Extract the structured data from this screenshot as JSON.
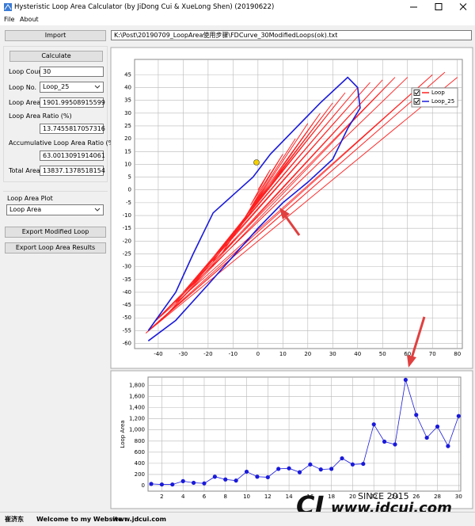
{
  "window": {
    "title": "Hysteristic Loop Area Calculator (by JiDong Cui & XueLong Shen) (20190622)"
  },
  "menu": [
    "File",
    "About"
  ],
  "left_panel": {
    "import_button": "Import",
    "calculate_button": "Calculate",
    "fields": [
      {
        "label": "Loop Count",
        "value": "30"
      },
      {
        "label": "Loop No.",
        "value": "Loop_25"
      },
      {
        "label": "Loop Area",
        "value": "1901.99508915599"
      },
      {
        "label": "Loop Area Ratio (%)",
        "value": "13.7455817057316"
      },
      {
        "label": "Accumulative Loop Area Ratio (%)",
        "value": "63.0013091914061"
      },
      {
        "label": "Total Area",
        "value": "13837.1378518154"
      }
    ],
    "plot_label": "Loop Area Plot",
    "plot_select": "Loop Area",
    "export_modified_button": "Export Modified Loop",
    "export_results_button": "Export Loop Area Results"
  },
  "file_path": "K:\\Post\\20190709_LoopArea使用步骤\\FDCurve_30ModifiedLoops(ok).txt",
  "chart_data": [
    {
      "type": "line",
      "legend": "upper right",
      "grid": true,
      "xlim": [
        -49.5,
        82
      ],
      "ylim": [
        -62,
        51
      ],
      "xticks": [
        -40,
        -30,
        -20,
        -10,
        0,
        10,
        20,
        30,
        40,
        50,
        60,
        70,
        80
      ],
      "yticks": [
        -60,
        -55,
        -50,
        -45,
        -40,
        -35,
        -30,
        -25,
        -20,
        -15,
        -10,
        -5,
        0,
        5,
        10,
        15,
        20,
        25,
        30,
        35,
        40,
        45
      ],
      "series": [
        {
          "name": "Loop",
          "color": "#ff2020",
          "x": [
            0,
            5,
            -3,
            10,
            -6,
            15,
            -10,
            20,
            -14,
            25,
            -18,
            30,
            -22,
            35,
            -26,
            40,
            -30,
            45,
            -33,
            50,
            -36,
            55,
            -40,
            60,
            -42,
            70,
            -44,
            75,
            -45,
            80
          ],
          "values": [
            0,
            8,
            -6,
            14,
            -12,
            20,
            -18,
            26,
            -24,
            30,
            -28,
            34,
            -32,
            38,
            -36,
            40,
            -40,
            42,
            -44,
            43,
            -48,
            44,
            -50,
            44,
            -52,
            45,
            -55,
            46,
            -56,
            44
          ]
        },
        {
          "name": "Loop_25",
          "color": "#1a1adb",
          "x": [
            -44,
            -33,
            -20,
            -10,
            0,
            10,
            20,
            30,
            36,
            41,
            40,
            36,
            25,
            15,
            5,
            -2,
            -10,
            -18,
            -26,
            -33,
            -44
          ],
          "values": [
            -59,
            -51,
            -37,
            -26,
            -15,
            -5,
            3,
            12,
            24,
            32,
            40,
            44,
            34,
            24,
            14,
            5,
            -2,
            -9,
            -25,
            -40,
            -55
          ]
        }
      ]
    },
    {
      "type": "line",
      "grid": true,
      "y_label": "Loop Area",
      "color": "#1a1adb",
      "xlim": [
        0.7,
        30.2
      ],
      "ylim": [
        -100,
        1950
      ],
      "xticks": [
        2,
        4,
        6,
        8,
        10,
        12,
        14,
        16,
        18,
        20,
        22,
        24,
        26,
        28,
        30
      ],
      "yticks": [
        0,
        200,
        400,
        600,
        800,
        {
          "value": 1000,
          "label": "1,000"
        },
        {
          "value": 1200,
          "label": "1,200"
        },
        {
          "value": 1400,
          "label": "1,400"
        },
        {
          "value": 1600,
          "label": "1,600"
        },
        {
          "value": 1800,
          "label": "1,800"
        }
      ],
      "x": [
        1,
        2,
        3,
        4,
        5,
        6,
        7,
        8,
        9,
        10,
        11,
        12,
        13,
        14,
        15,
        16,
        17,
        18,
        19,
        20,
        21,
        22,
        23,
        24,
        25,
        26,
        27,
        28,
        29,
        30
      ],
      "values": [
        30,
        20,
        20,
        80,
        50,
        40,
        160,
        110,
        90,
        250,
        160,
        150,
        300,
        310,
        240,
        380,
        290,
        300,
        490,
        380,
        390,
        1100,
        790,
        740,
        1900,
        1270,
        860,
        1060,
        710,
        1250
      ]
    }
  ],
  "watermark": {
    "since": "SINCE 2015",
    "site": "www.jdcui.com"
  },
  "status_bar": [
    "崔济东",
    "Welcome to my Website :",
    "www.jdcui.com"
  ]
}
